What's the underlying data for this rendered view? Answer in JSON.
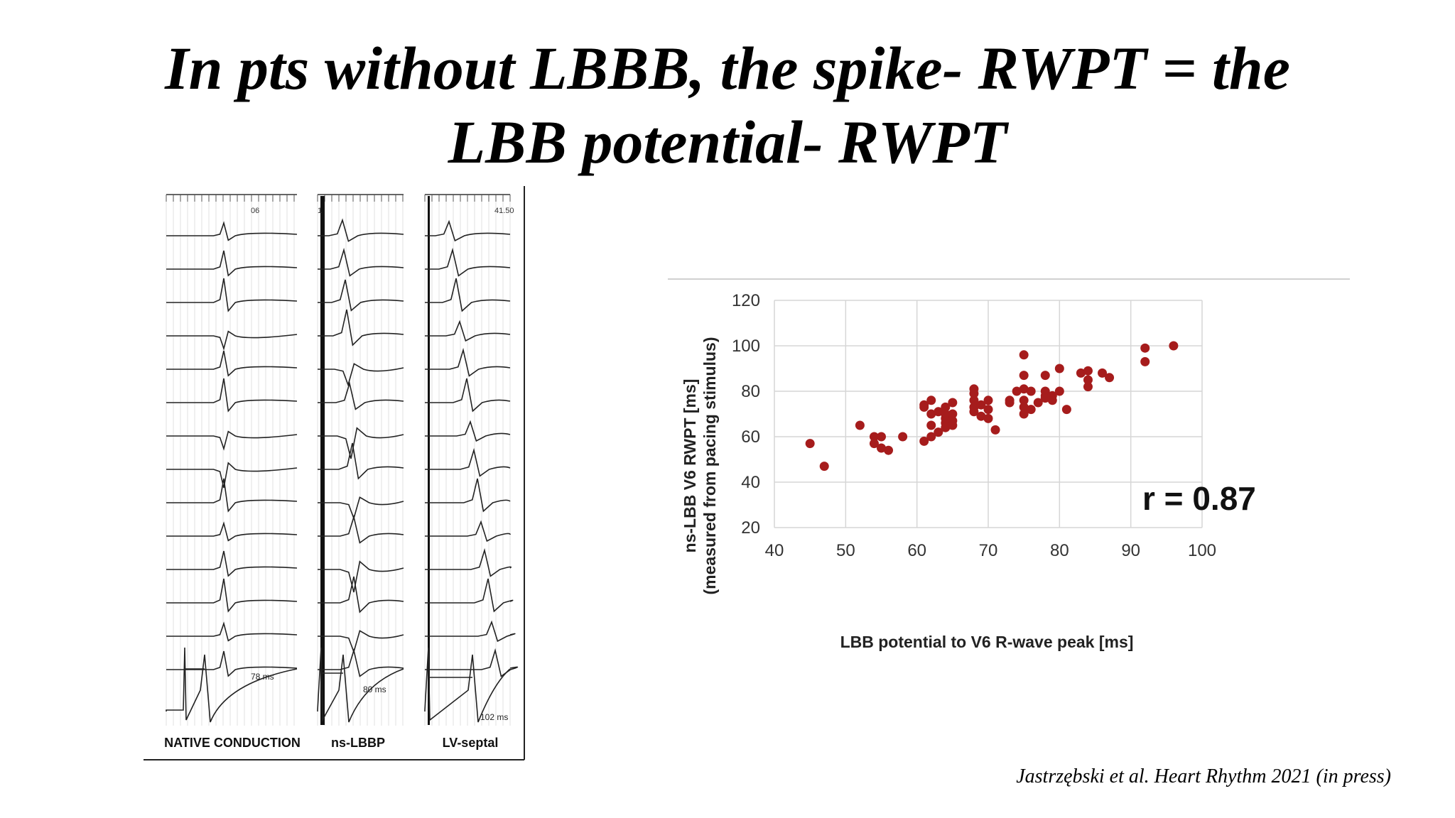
{
  "slide": {
    "title_line1": "In pts without LBBB, the spike- RWPT = the",
    "title_line2": "LBB potential- RWPT",
    "citation": "Jastrzębski et al. Heart Rhythm 2021 (in press)"
  },
  "ecg_figure": {
    "panels": [
      {
        "label": "NATIVE CONDUCTION",
        "header_value": "06",
        "interval_label": "78 ms"
      },
      {
        "label": "ns-LBBP",
        "header_value": "1",
        "interval_label": "80 ms"
      },
      {
        "label": "LV-septal",
        "header_value": "41.50",
        "interval_label": "102 ms"
      }
    ],
    "rows": 14
  },
  "chart_data": {
    "type": "scatter",
    "xlabel": "LBB potential to V6 R-wave peak [ms]",
    "ylabel_line1": "ns-LBB V6 RWPT [ms]",
    "ylabel_line2": "(measured from pacing stimulus)",
    "xlim": [
      40,
      100
    ],
    "ylim": [
      20,
      120
    ],
    "xticks": [
      40,
      50,
      60,
      70,
      80,
      90,
      100
    ],
    "yticks": [
      20,
      40,
      60,
      80,
      100,
      120
    ],
    "grid": true,
    "marker_color": "#a61c1c",
    "annotation": "r = 0.87",
    "points": [
      [
        45,
        57
      ],
      [
        47,
        47
      ],
      [
        52,
        65
      ],
      [
        54,
        60
      ],
      [
        54,
        57
      ],
      [
        55,
        60
      ],
      [
        55,
        55
      ],
      [
        56,
        54
      ],
      [
        58,
        60
      ],
      [
        61,
        74
      ],
      [
        61,
        73
      ],
      [
        61,
        58
      ],
      [
        62,
        76
      ],
      [
        62,
        70
      ],
      [
        62,
        65
      ],
      [
        62,
        60
      ],
      [
        63,
        71
      ],
      [
        63,
        62
      ],
      [
        64,
        73
      ],
      [
        64,
        70
      ],
      [
        64,
        68
      ],
      [
        64,
        66
      ],
      [
        64,
        64
      ],
      [
        65,
        75
      ],
      [
        65,
        70
      ],
      [
        65,
        67
      ],
      [
        65,
        65
      ],
      [
        68,
        81
      ],
      [
        68,
        79
      ],
      [
        68,
        76
      ],
      [
        68,
        73
      ],
      [
        68,
        71
      ],
      [
        69,
        74
      ],
      [
        69,
        69
      ],
      [
        70,
        76
      ],
      [
        70,
        72
      ],
      [
        70,
        68
      ],
      [
        71,
        63
      ],
      [
        73,
        76
      ],
      [
        73,
        75
      ],
      [
        74,
        80
      ],
      [
        75,
        96
      ],
      [
        75,
        87
      ],
      [
        75,
        81
      ],
      [
        75,
        76
      ],
      [
        75,
        73
      ],
      [
        75,
        70
      ],
      [
        76,
        80
      ],
      [
        76,
        72
      ],
      [
        77,
        75
      ],
      [
        78,
        87
      ],
      [
        78,
        80
      ],
      [
        78,
        78
      ],
      [
        78,
        77
      ],
      [
        79,
        78
      ],
      [
        79,
        76
      ],
      [
        80,
        90
      ],
      [
        80,
        80
      ],
      [
        81,
        72
      ],
      [
        83,
        88
      ],
      [
        84,
        89
      ],
      [
        84,
        85
      ],
      [
        84,
        82
      ],
      [
        86,
        88
      ],
      [
        87,
        86
      ],
      [
        92,
        99
      ],
      [
        92,
        93
      ],
      [
        96,
        100
      ]
    ]
  }
}
